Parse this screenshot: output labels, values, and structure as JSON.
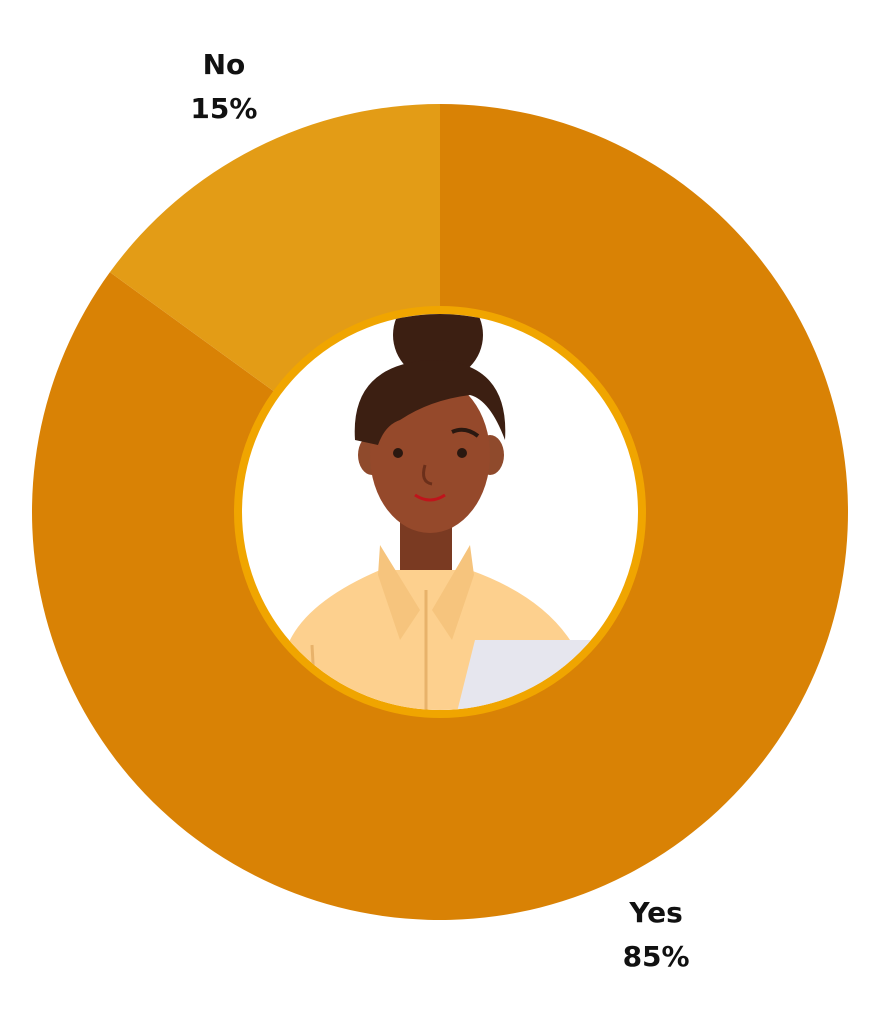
{
  "chart_data": {
    "type": "donut",
    "categories": [
      "Yes",
      "No"
    ],
    "values": [
      85,
      15
    ],
    "value_labels": [
      "85%",
      "15%"
    ],
    "colors": [
      "#d98205",
      "#e39c16"
    ]
  }
}
